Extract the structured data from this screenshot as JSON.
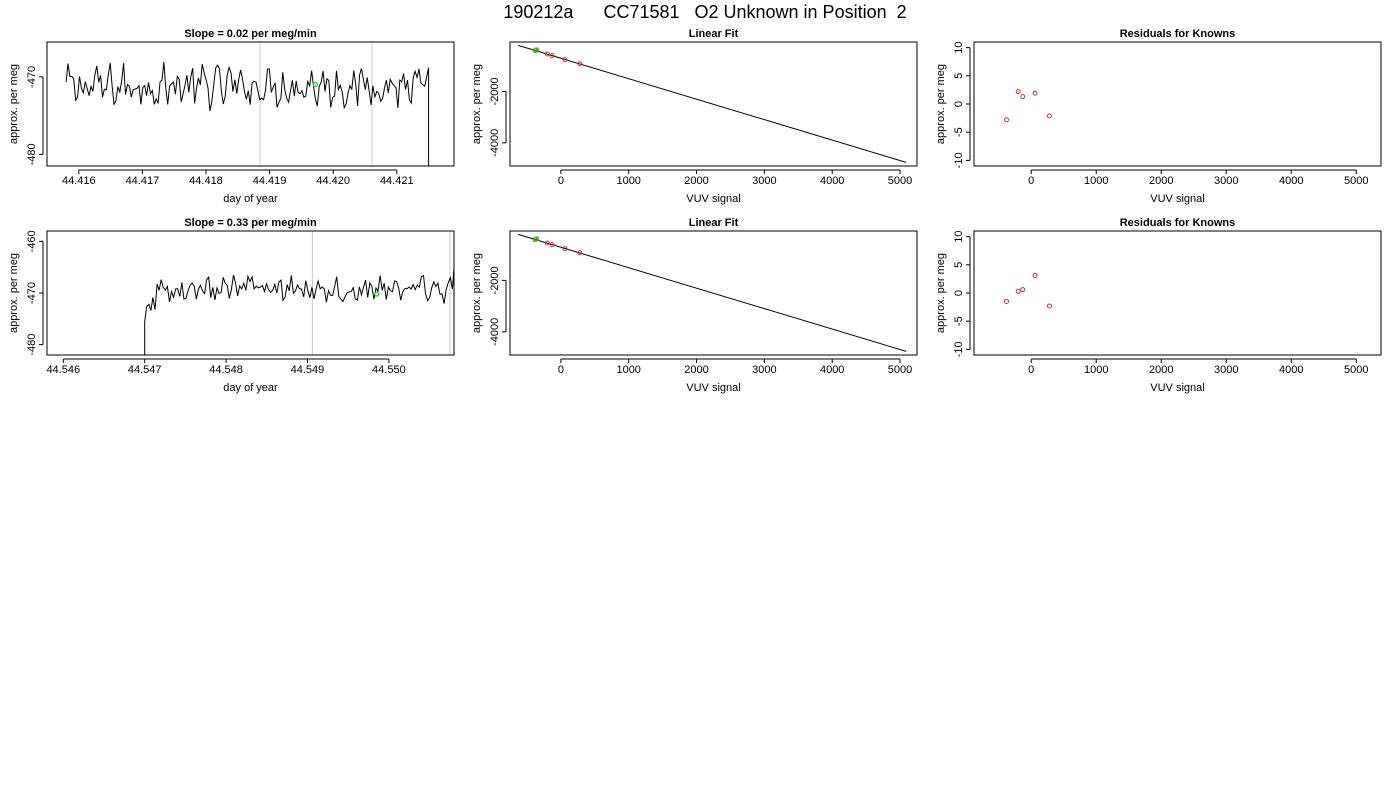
{
  "page_title": "190212a      CC71581   O2 Unknown in Position  2",
  "colors": {
    "trace": "#000000",
    "marker_green": "#22cc22",
    "known_points": "#cc3333",
    "vline": "#c8c8c8"
  },
  "chart_data": [
    {
      "type": "line",
      "title": "Slope =  0.02  per meg/min",
      "xlabel": "day of year",
      "ylabel": "approx. per meg",
      "xlim": [
        44.4155,
        44.4219
      ],
      "ylim": [
        -481.5,
        -465.5
      ],
      "xticks": [
        44.416,
        44.417,
        44.418,
        44.419,
        44.42,
        44.421
      ],
      "xtick_labels": [
        "44.416",
        "44.417",
        "44.418",
        "44.419",
        "44.420",
        "44.421"
      ],
      "yticks": [
        -480,
        -470
      ],
      "ytick_labels": [
        "-480",
        "-470"
      ],
      "trace": {
        "x_start": 44.4158,
        "x_end": 44.4215,
        "samples": 190,
        "mean": -471.2,
        "noise": 1.9
      },
      "trailing_drop_to": -481.5,
      "vlines": [
        44.41885,
        44.42061
      ],
      "highlight_points": [
        {
          "x": 44.41972,
          "y": -471.0
        }
      ]
    },
    {
      "type": "scatter",
      "title": "Linear Fit",
      "xlabel": "VUV signal",
      "ylabel": "approx. per meg",
      "xlim": [
        -750,
        5250
      ],
      "ylim": [
        -4900,
        -80
      ],
      "xticks": [
        0,
        1000,
        2000,
        3000,
        4000,
        5000
      ],
      "xtick_labels": [
        "0",
        "1000",
        "2000",
        "3000",
        "4000",
        "5000"
      ],
      "yticks": [
        -4000,
        -2000
      ],
      "ytick_labels": [
        "-4000",
        "-2000"
      ],
      "fit_line": {
        "x": [
          -630,
          5090
        ],
        "y": [
          -210,
          -4760
        ]
      },
      "known_points": [
        {
          "x": -380,
          "y": -410
        },
        {
          "x": -200,
          "y": -548
        },
        {
          "x": -130,
          "y": -608
        },
        {
          "x": 60,
          "y": -765
        },
        {
          "x": 280,
          "y": -925
        }
      ],
      "unknown_point": {
        "x": -360,
        "y": -390
      }
    },
    {
      "type": "scatter",
      "title": "Residuals for Knowns",
      "xlabel": "VUV signal",
      "ylabel": "approx. per meg",
      "xlim": [
        -880,
        5380
      ],
      "ylim": [
        -11,
        11
      ],
      "xticks": [
        0,
        1000,
        2000,
        3000,
        4000,
        5000
      ],
      "xtick_labels": [
        "0",
        "1000",
        "2000",
        "3000",
        "4000",
        "5000"
      ],
      "yticks": [
        -10,
        -5,
        0,
        5,
        10
      ],
      "ytick_labels": [
        "-10",
        "-5",
        "0",
        "5",
        "10"
      ],
      "points": [
        {
          "x": -380,
          "y": -2.8
        },
        {
          "x": -200,
          "y": 2.2
        },
        {
          "x": -130,
          "y": 1.3
        },
        {
          "x": 60,
          "y": 1.9
        },
        {
          "x": 280,
          "y": -2.1
        }
      ]
    },
    {
      "type": "line",
      "title": "Slope =  0.33  per meg/min",
      "xlabel": "day of year",
      "ylabel": "approx. per meg",
      "xlim": [
        44.5458,
        44.5508
      ],
      "ylim": [
        -482,
        -458
      ],
      "xticks": [
        44.546,
        44.547,
        44.548,
        44.549,
        44.55
      ],
      "xtick_labels": [
        "44.546",
        "44.547",
        "44.548",
        "44.549",
        "44.550"
      ],
      "yticks": [
        -480,
        -470,
        -460
      ],
      "ytick_labels": [
        "-480",
        "-470",
        "-460"
      ],
      "trace": {
        "x_start": 44.547,
        "x_end": 44.55078,
        "samples": 150,
        "mean": -469.2,
        "noise": 1.8
      },
      "leading_rise_from": -482,
      "trailing_rise_to": -465.2,
      "vlines": [
        44.54906,
        44.55075
      ],
      "highlight_points": [
        {
          "x": 44.54985,
          "y": -470.2
        }
      ]
    },
    {
      "type": "scatter",
      "title": "Linear Fit",
      "xlabel": "VUV signal",
      "ylabel": "approx. per meg",
      "xlim": [
        -750,
        5250
      ],
      "ylim": [
        -4900,
        -80
      ],
      "xticks": [
        0,
        1000,
        2000,
        3000,
        4000,
        5000
      ],
      "xtick_labels": [
        "0",
        "1000",
        "2000",
        "3000",
        "4000",
        "5000"
      ],
      "yticks": [
        -4000,
        -2000
      ],
      "ytick_labels": [
        "-4000",
        "-2000"
      ],
      "fit_line": {
        "x": [
          -630,
          5090
        ],
        "y": [
          -210,
          -4760
        ]
      },
      "known_points": [
        {
          "x": -380,
          "y": -410
        },
        {
          "x": -200,
          "y": -548
        },
        {
          "x": -130,
          "y": -608
        },
        {
          "x": 60,
          "y": -765
        },
        {
          "x": 280,
          "y": -925
        }
      ],
      "unknown_point": {
        "x": -360,
        "y": -390
      }
    },
    {
      "type": "scatter",
      "title": "Residuals for Knowns",
      "xlabel": "VUV signal",
      "ylabel": "approx. per meg",
      "xlim": [
        -880,
        5380
      ],
      "ylim": [
        -11,
        11
      ],
      "xticks": [
        0,
        1000,
        2000,
        3000,
        4000,
        5000
      ],
      "xtick_labels": [
        "0",
        "1000",
        "2000",
        "3000",
        "4000",
        "5000"
      ],
      "yticks": [
        -10,
        -5,
        0,
        5,
        10
      ],
      "ytick_labels": [
        "-10",
        "-5",
        "0",
        "5",
        "10"
      ],
      "points": [
        {
          "x": -380,
          "y": -1.5
        },
        {
          "x": -200,
          "y": 0.3
        },
        {
          "x": -130,
          "y": 0.6
        },
        {
          "x": 60,
          "y": 3.1
        },
        {
          "x": 280,
          "y": -2.3
        }
      ]
    }
  ]
}
